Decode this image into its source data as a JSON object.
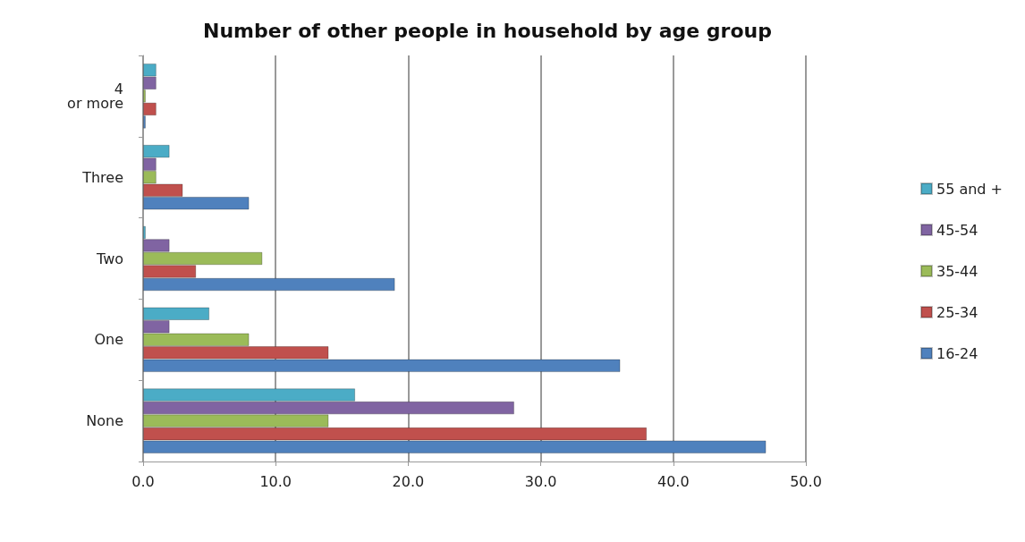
{
  "chart_data": {
    "type": "bar",
    "orientation": "horizontal",
    "title": "Number of other people in household by age group",
    "categories": [
      "4 or more",
      "Three",
      "Two",
      "One",
      "None"
    ],
    "series": [
      {
        "name": "16-24",
        "color": "#4f81bd",
        "values": [
          0.2,
          8,
          19,
          36,
          47
        ]
      },
      {
        "name": "25-34",
        "color": "#c0504d",
        "values": [
          1,
          3,
          4,
          14,
          38
        ]
      },
      {
        "name": "35-44",
        "color": "#9bbb59",
        "values": [
          0.2,
          1,
          9,
          8,
          14
        ]
      },
      {
        "name": "45-54",
        "color": "#8064a2",
        "values": [
          1,
          1,
          2,
          2,
          28
        ]
      },
      {
        "name": "55 and +",
        "color": "#4bacc6",
        "values": [
          1,
          2,
          0.2,
          5,
          16
        ]
      }
    ],
    "xlim": [
      0,
      50
    ],
    "xticks": [
      {
        "value": 0,
        "label": "0.0"
      },
      {
        "value": 10,
        "label": "10.0"
      },
      {
        "value": 20,
        "label": "20.0"
      },
      {
        "value": 30,
        "label": "30.0"
      },
      {
        "value": 40,
        "label": "40.0"
      },
      {
        "value": 50,
        "label": "50.0"
      }
    ],
    "grid": "x",
    "legend": "right"
  }
}
